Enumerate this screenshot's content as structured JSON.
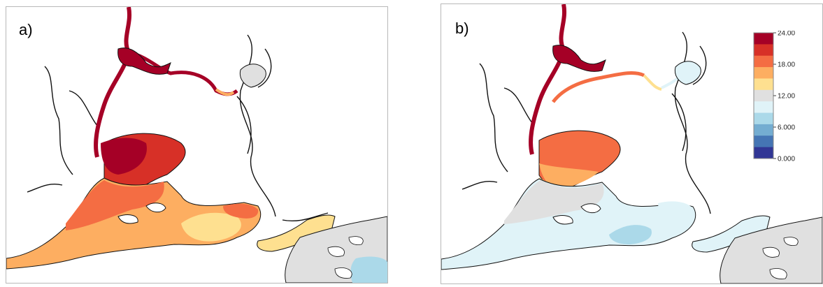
{
  "panels": [
    {
      "label": "a)"
    },
    {
      "label": "b)"
    }
  ],
  "legend": {
    "ticks": [
      "24.00",
      "18.00",
      "12.00",
      "6.000",
      "0.000"
    ],
    "colors": [
      "#a50026",
      "#d73027",
      "#f46d43",
      "#fdae61",
      "#fee090",
      "#e0e0e0",
      "#e0f3f8",
      "#abd9e9",
      "#74add1",
      "#4575b4",
      "#313695"
    ]
  }
}
